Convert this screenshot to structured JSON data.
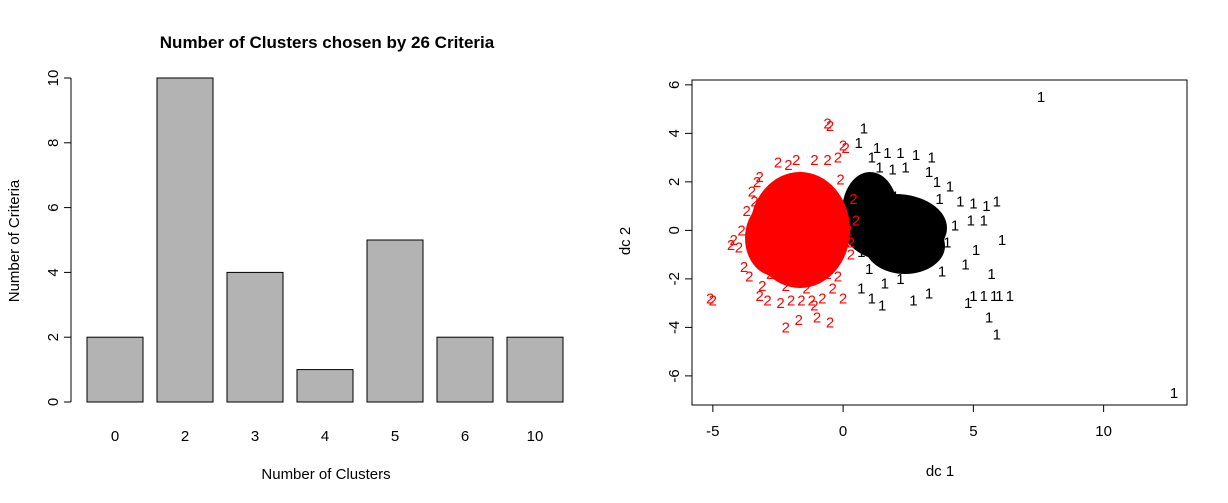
{
  "chart_data": [
    {
      "type": "bar",
      "title": "Number of Clusters chosen by 26 Criteria",
      "xlabel": "Number of Clusters",
      "ylabel": "Number of Criteria",
      "categories": [
        "0",
        "2",
        "3",
        "4",
        "5",
        "6",
        "10"
      ],
      "values": [
        2,
        10,
        4,
        1,
        5,
        2,
        2
      ],
      "ylim": [
        0,
        10
      ],
      "yticks": [
        0,
        2,
        4,
        6,
        8,
        10
      ],
      "bar_color": "#b3b3b3",
      "grid": false
    },
    {
      "type": "scatter",
      "title": "",
      "xlabel": "dc 1",
      "ylabel": "dc 2",
      "xlim": [
        -5.8,
        13.2
      ],
      "ylim": [
        -7.2,
        6.2
      ],
      "xticks": [
        -5,
        0,
        5,
        10
      ],
      "yticks": [
        -6,
        -4,
        -2,
        0,
        2,
        4,
        6
      ],
      "grid": false,
      "series": [
        {
          "name": "1",
          "color": "#000000",
          "points": [
            [
              7.6,
              5.5
            ],
            [
              12.7,
              -6.7
            ],
            [
              0.8,
              4.2
            ],
            [
              0.6,
              3.6
            ],
            [
              1.3,
              3.4
            ],
            [
              1.7,
              3.2
            ],
            [
              2.2,
              3.2
            ],
            [
              2.8,
              3.1
            ],
            [
              3.4,
              3.0
            ],
            [
              1.1,
              3.0
            ],
            [
              1.4,
              2.6
            ],
            [
              1.9,
              2.5
            ],
            [
              2.4,
              2.6
            ],
            [
              3.3,
              2.4
            ],
            [
              3.6,
              2.0
            ],
            [
              4.1,
              1.8
            ],
            [
              4.5,
              1.2
            ],
            [
              5.0,
              1.1
            ],
            [
              5.5,
              1.0
            ],
            [
              5.9,
              1.2
            ],
            [
              5.4,
              0.4
            ],
            [
              4.9,
              0.4
            ],
            [
              4.3,
              0.2
            ],
            [
              6.1,
              -0.4
            ],
            [
              5.1,
              -0.8
            ],
            [
              4.7,
              -1.4
            ],
            [
              3.8,
              -1.7
            ],
            [
              3.3,
              -2.6
            ],
            [
              2.2,
              -2.0
            ],
            [
              2.7,
              -2.9
            ],
            [
              1.1,
              -2.8
            ],
            [
              1.5,
              -3.1
            ],
            [
              5.7,
              -1.8
            ],
            [
              5.4,
              -2.7
            ],
            [
              5.0,
              -2.7
            ],
            [
              4.8,
              -3.0
            ],
            [
              6.4,
              -2.7
            ],
            [
              5.8,
              -2.7
            ],
            [
              5.6,
              -3.6
            ],
            [
              5.9,
              -4.3
            ],
            [
              6.0,
              -2.7
            ],
            [
              0.7,
              -2.4
            ],
            [
              1.2,
              -0.4
            ],
            [
              1.8,
              0.3
            ],
            [
              2.3,
              -0.6
            ],
            [
              2.9,
              0.9
            ],
            [
              3.1,
              -1.1
            ],
            [
              2.0,
              1.4
            ],
            [
              1.5,
              1.9
            ],
            [
              2.6,
              -1.4
            ],
            [
              3.5,
              0.5
            ],
            [
              0.9,
              1.2
            ],
            [
              1.0,
              -1.6
            ],
            [
              1.6,
              -2.2
            ],
            [
              4.0,
              -0.5
            ],
            [
              3.7,
              1.3
            ],
            [
              2.4,
              0.1
            ],
            [
              0.6,
              0.5
            ],
            [
              0.7,
              -0.9
            ],
            [
              1.3,
              0.8
            ]
          ]
        },
        {
          "name": "2",
          "color": "#ff0000",
          "points": [
            [
              -0.6,
              4.4
            ],
            [
              -0.5,
              4.3
            ],
            [
              0.0,
              3.5
            ],
            [
              0.1,
              3.4
            ],
            [
              -0.2,
              3.0
            ],
            [
              -0.6,
              2.9
            ],
            [
              -1.1,
              2.9
            ],
            [
              -1.8,
              2.9
            ],
            [
              -2.1,
              2.7
            ],
            [
              -2.5,
              2.8
            ],
            [
              -3.2,
              2.2
            ],
            [
              -3.3,
              2.0
            ],
            [
              -3.5,
              1.6
            ],
            [
              -3.4,
              1.2
            ],
            [
              -3.7,
              0.8
            ],
            [
              -3.9,
              0.0
            ],
            [
              -4.2,
              -0.4
            ],
            [
              -4.0,
              -0.7
            ],
            [
              -4.3,
              -0.6
            ],
            [
              -3.8,
              -1.5
            ],
            [
              -3.6,
              -1.9
            ],
            [
              -3.1,
              -2.3
            ],
            [
              -3.2,
              -2.7
            ],
            [
              -2.9,
              -2.9
            ],
            [
              -2.4,
              -3.0
            ],
            [
              -2.0,
              -2.9
            ],
            [
              -1.6,
              -2.9
            ],
            [
              -1.2,
              -2.9
            ],
            [
              -0.8,
              -2.8
            ],
            [
              -0.4,
              -2.4
            ],
            [
              0.0,
              -2.8
            ],
            [
              -1.1,
              -3.1
            ],
            [
              -1.0,
              -3.6
            ],
            [
              -0.5,
              -3.8
            ],
            [
              -1.7,
              -3.7
            ],
            [
              -2.2,
              -4.0
            ],
            [
              -5.1,
              -2.8
            ],
            [
              -5.0,
              -2.9
            ],
            [
              -0.2,
              -1.9
            ],
            [
              0.3,
              -1.0
            ],
            [
              0.5,
              0.4
            ],
            [
              0.4,
              1.3
            ],
            [
              -0.1,
              2.1
            ],
            [
              -0.9,
              1.8
            ],
            [
              -1.6,
              2.2
            ],
            [
              -2.6,
              1.5
            ],
            [
              -3.0,
              0.6
            ],
            [
              -3.1,
              -0.9
            ],
            [
              -2.8,
              -1.8
            ],
            [
              -2.2,
              -2.3
            ],
            [
              -1.4,
              -2.4
            ],
            [
              -0.6,
              -1.8
            ],
            [
              0.2,
              0.0
            ],
            [
              0.3,
              -0.5
            ]
          ]
        }
      ]
    }
  ]
}
